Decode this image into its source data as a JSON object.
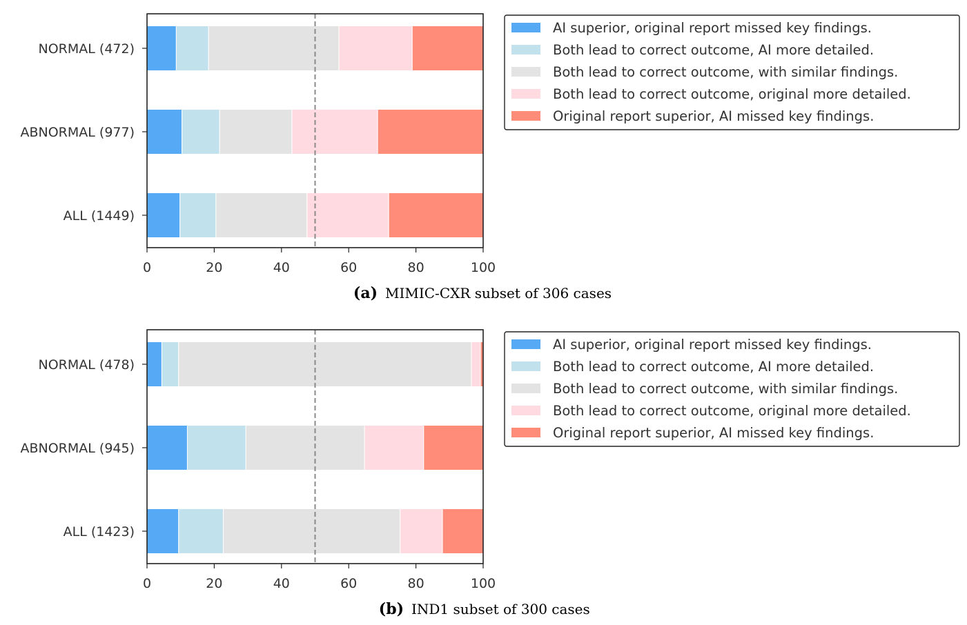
{
  "chart_data": [
    {
      "type": "bar",
      "orientation": "horizontal",
      "stacked": true,
      "caption_letter": "(a)",
      "caption_text": "MIMIC-CXR subset of 306 cases",
      "categories": [
        "NORMAL (472)",
        "ABNORMAL (977)",
        "ALL (1449)"
      ],
      "series": [
        {
          "name": "AI superior, original report missed key findings.",
          "color": "#56aaf5",
          "values": [
            8.7,
            10.4,
            9.8
          ]
        },
        {
          "name": "Both lead to correct outcome, AI more detailed.",
          "color": "#c1e1ec",
          "values": [
            9.6,
            11.2,
            10.7
          ]
        },
        {
          "name": "Both lead to correct outcome, with similar findings.",
          "color": "#e3e3e3",
          "values": [
            38.8,
            21.5,
            27.1
          ]
        },
        {
          "name": "Both lead to correct outcome, original more detailed.",
          "color": "#ffdbe1",
          "values": [
            21.8,
            25.5,
            24.3
          ]
        },
        {
          "name": "Original report superior, AI missed key findings.",
          "color": "#ff8c78",
          "values": [
            21.1,
            31.4,
            28.1
          ]
        }
      ],
      "xlim": [
        0,
        100
      ],
      "xticks": [
        "0",
        "20",
        "40",
        "60",
        "80",
        "100"
      ],
      "reference_line": 50,
      "legend_placement": "right"
    },
    {
      "type": "bar",
      "orientation": "horizontal",
      "stacked": true,
      "caption_letter": "(b)",
      "caption_text": "IND1 subset of 300 cases",
      "categories": [
        "NORMAL (478)",
        "ABNORMAL (945)",
        "ALL (1423)"
      ],
      "series": [
        {
          "name": "AI superior, original report missed key findings.",
          "color": "#56aaf5",
          "values": [
            4.4,
            12.0,
            9.4
          ]
        },
        {
          "name": "Both lead to correct outcome, AI more detailed.",
          "color": "#c1e1ec",
          "values": [
            5.0,
            17.4,
            13.3
          ]
        },
        {
          "name": "Both lead to correct outcome, with similar findings.",
          "color": "#e3e3e3",
          "values": [
            87.1,
            35.3,
            52.6
          ]
        },
        {
          "name": "Both lead to correct outcome, original more detailed.",
          "color": "#ffdbe1",
          "values": [
            2.7,
            17.6,
            12.6
          ]
        },
        {
          "name": "Original report superior, AI missed key findings.",
          "color": "#ff8c78",
          "values": [
            0.8,
            17.7,
            12.1
          ]
        }
      ],
      "xlim": [
        0,
        100
      ],
      "xticks": [
        "0",
        "20",
        "40",
        "60",
        "80",
        "100"
      ],
      "reference_line": 50,
      "legend_placement": "right"
    }
  ]
}
